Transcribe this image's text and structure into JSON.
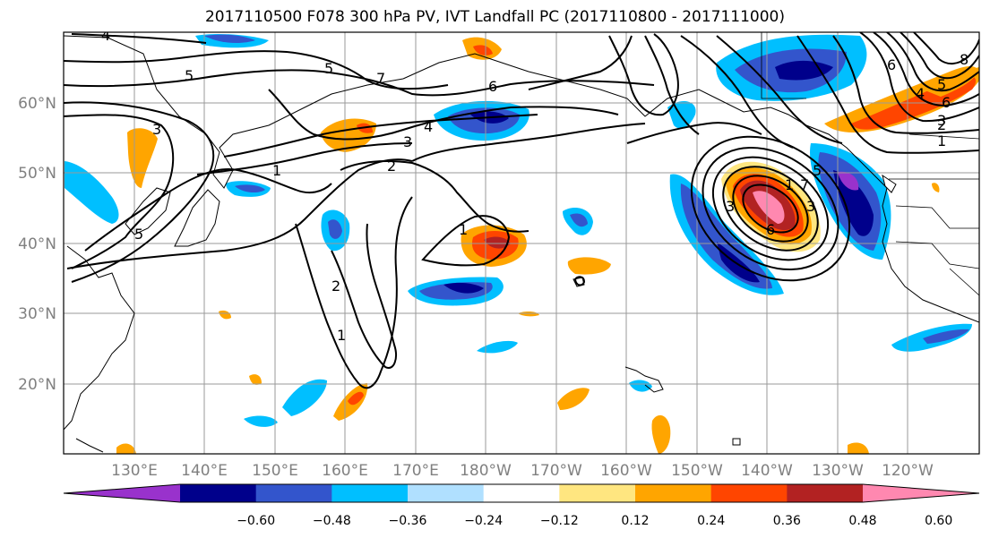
{
  "title": "2017110500 F078 300 hPa PV, IVT Landfall PC (2017110800 - 2017111000)",
  "map": {
    "lat_labels": [
      "60°N",
      "50°N",
      "40°N",
      "30°N",
      "20°N"
    ],
    "lon_labels": [
      "130°E",
      "140°E",
      "150°E",
      "160°E",
      "170°E",
      "180°W",
      "170°W",
      "160°W",
      "150°W",
      "140°W",
      "130°W",
      "120°W"
    ],
    "grid": "on",
    "contour_labels": [
      "4",
      "5",
      "5",
      "7",
      "6",
      "4",
      "3",
      "2",
      "1",
      "1",
      "2",
      "1",
      "5",
      "3",
      "1",
      "2",
      "3",
      "4",
      "5",
      "6",
      "8",
      "1",
      "3",
      "6",
      "7",
      "6",
      "5",
      "3"
    ]
  },
  "colorbar": {
    "ticks": [
      "−0.60",
      "−0.48",
      "−0.36",
      "−0.24",
      "−0.12",
      "0.12",
      "0.24",
      "0.36",
      "0.48",
      "0.60"
    ],
    "colors": [
      "#9932cc",
      "#00008b",
      "#3355cc",
      "#00bfff",
      "#b0e0ff",
      "#ffffff",
      "#ffe680",
      "#ffa500",
      "#ff4500",
      "#b22222",
      "#ff88b0"
    ]
  }
}
